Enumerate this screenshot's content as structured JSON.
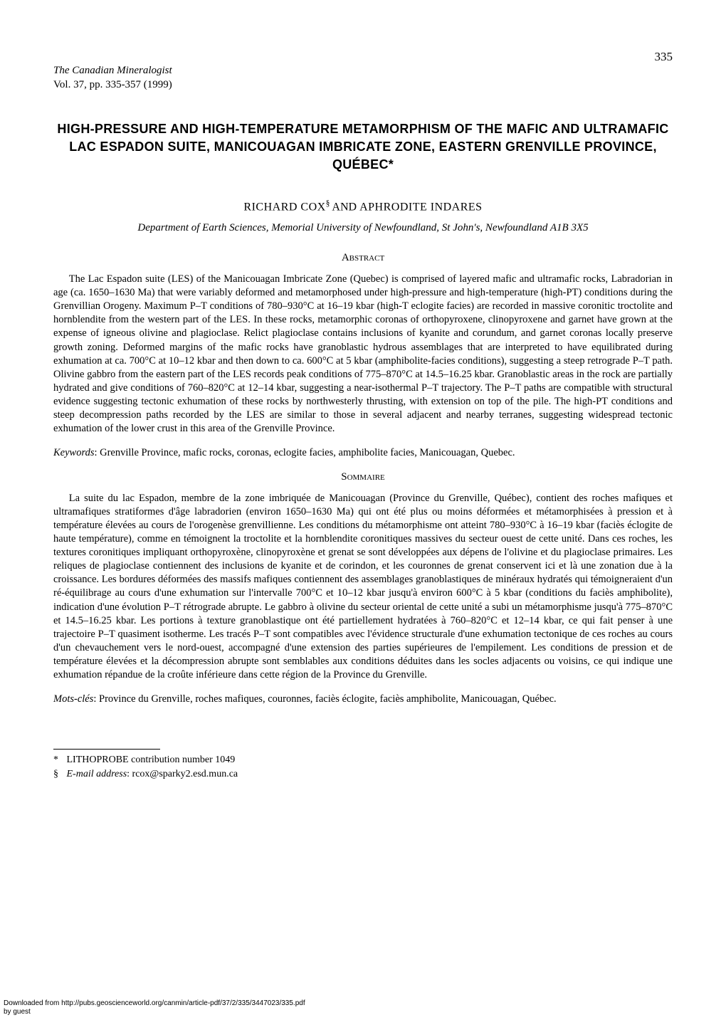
{
  "page_number": "335",
  "journal": {
    "name": "The Canadian Mineralogist",
    "volume_info": "Vol. 37, pp. 335-357 (1999)"
  },
  "title": "HIGH-PRESSURE AND HIGH-TEMPERATURE METAMORPHISM OF THE MAFIC AND ULTRAMAFIC LAC ESPADON SUITE, MANICOUAGAN IMBRICATE ZONE, EASTERN GRENVILLE PROVINCE, QUÉBEC*",
  "authors": {
    "author1": "RICHARD COX",
    "author1_symbol": "§",
    "connector": " AND ",
    "author2": "APHRODITE INDARES"
  },
  "affiliation": "Department of Earth Sciences, Memorial University of Newfoundland, St John's, Newfoundland A1B 3X5",
  "abstract": {
    "heading": "Abstract",
    "text": "The Lac Espadon suite (LES) of the Manicouagan Imbricate Zone (Quebec) is comprised of layered mafic and ultramafic rocks, Labradorian in age (ca. 1650–1630 Ma) that were variably deformed and metamorphosed under high-pressure and high-temperature (high-PT) conditions during the Grenvillian Orogeny. Maximum P–T conditions of 780–930°C at 16–19 kbar (high-T eclogite facies) are recorded in massive coronitic troctolite and hornblendite from the western part of the LES. In these rocks, metamorphic coronas of orthopyroxene, clinopyroxene and garnet have grown at the expense of igneous olivine and plagioclase. Relict plagioclase contains inclusions of kyanite and corundum, and garnet coronas locally preserve growth zoning. Deformed margins of the mafic rocks have granoblastic hydrous assemblages that are interpreted to have equilibrated during exhumation at ca. 700°C at 10–12 kbar and then down to ca. 600°C at 5 kbar (amphibolite-facies conditions), suggesting a steep retrograde P–T path. Olivine gabbro from the eastern part of the LES records peak conditions of 775–870°C at 14.5–16.25 kbar. Granoblastic areas in the rock are partially hydrated and give conditions of 760–820°C at 12–14 kbar, suggesting a near-isothermal P–T trajectory. The P–T paths are compatible with structural evidence suggesting tectonic exhumation of these rocks by northwesterly thrusting, with extension on top of the pile. The high-PT conditions and steep decompression paths recorded by the LES are similar to those in several adjacent and nearby terranes, suggesting widespread tectonic exhumation of the lower crust in this area of the Grenville Province."
  },
  "keywords": {
    "label": "Keywords",
    "text": ": Grenville Province, mafic rocks, coronas, eclogite facies, amphibolite facies, Manicouagan, Quebec."
  },
  "sommaire": {
    "heading": "Sommaire",
    "text": "La suite du lac Espadon, membre de la zone imbriquée de Manicouagan (Province du Grenville, Québec), contient des roches mafiques et ultramafiques stratiformes d'âge labradorien (environ 1650–1630 Ma) qui ont été plus ou moins déformées et métamorphisées à pression et à température élevées au cours de l'orogenèse grenvillienne. Les conditions du métamorphisme ont atteint 780–930°C à 16–19 kbar (faciès éclogite de haute température), comme en témoignent la troctolite et la hornblendite coronitiques massives du secteur ouest de cette unité. Dans ces roches, les textures coronitiques impliquant orthopyroxène, clinopyroxène et grenat se sont développées aux dépens de l'olivine et du plagioclase primaires. Les reliques de plagioclase contiennent des inclusions de kyanite et de corindon, et les couronnes de grenat conservent ici et là une zonation due à la croissance. Les bordures déformées des massifs mafiques contiennent des assemblages granoblastiques de minéraux hydratés qui témoigneraient d'un ré-équilibrage au cours d'une exhumation sur l'intervalle 700°C et 10–12 kbar jusqu'à environ 600°C à 5 kbar (conditions du faciès amphibolite), indication d'une évolution P–T rétrograde abrupte. Le gabbro à olivine du secteur oriental de cette unité a subi un métamorphisme jusqu'à 775–870°C et 14.5–16.25 kbar. Les portions à texture granoblastique ont été partiellement hydratées à 760–820°C et 12–14 kbar, ce qui fait penser à une trajectoire P–T quasiment isotherme. Les tracés P–T sont compatibles avec l'évidence structurale d'une exhumation tectonique de ces roches au cours d'un chevauchement vers le nord-ouest, accompagné d'une extension des parties supérieures de l'empilement. Les conditions de pression et de température élevées et la décompression abrupte sont semblables aux conditions déduites dans les socles adjacents ou voisins, ce qui indique une exhumation répandue de la croûte inférieure dans cette région de la Province du Grenville."
  },
  "motscles": {
    "label": "Mots-clés",
    "text": ": Province du Grenville, roches mafiques, couronnes, faciès éclogite, faciès amphibolite, Manicouagan, Québec."
  },
  "footnotes": {
    "note1_symbol": "*",
    "note1_text": "LITHOPROBE contribution number 1049",
    "note2_symbol": "§",
    "note2_label": "E-mail address",
    "note2_text": ": rcox@sparky2.esd.mun.ca"
  },
  "download": {
    "line1": "Downloaded from http://pubs.geoscienceworld.org/canmin/article-pdf/37/2/335/3447023/335.pdf",
    "line2": "by guest"
  }
}
